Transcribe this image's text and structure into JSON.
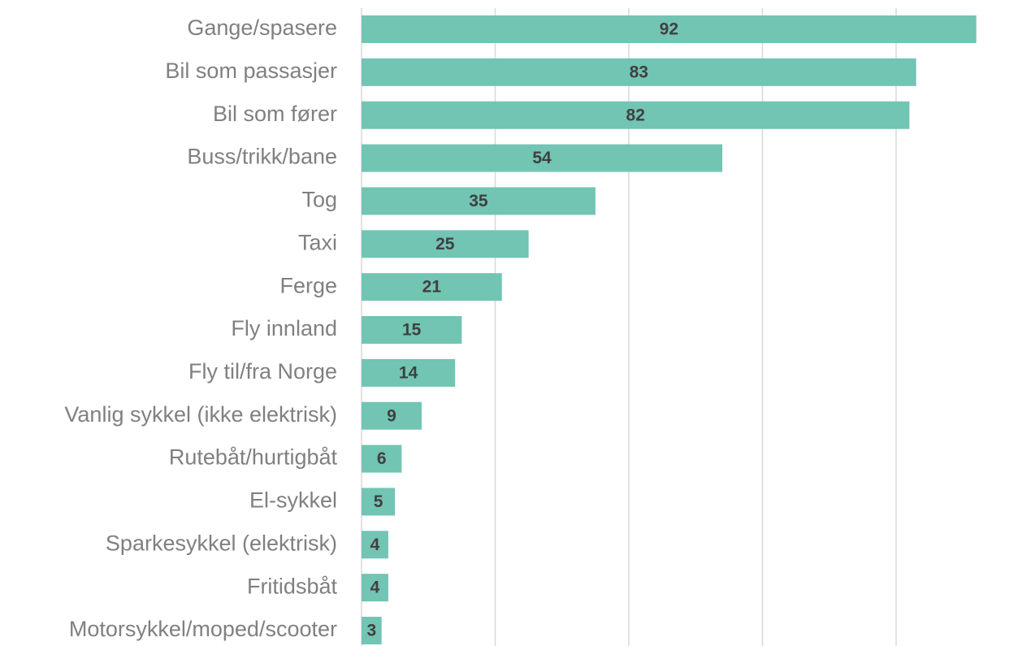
{
  "chart_data": {
    "type": "bar",
    "orientation": "horizontal",
    "categories": [
      "Gange/spasere",
      "Bil som passasjer",
      "Bil som fører",
      "Buss/trikk/bane",
      "Tog",
      "Taxi",
      "Ferge",
      "Fly innland",
      "Fly til/fra Norge",
      "Vanlig sykkel (ikke elektrisk)",
      "Rutebåt/hurtigbåt",
      "El-sykkel",
      "Sparkesykkel (elektrisk)",
      "Fritidsbåt",
      "Motorsykkel/moped/scooter"
    ],
    "values": [
      92,
      83,
      82,
      54,
      35,
      25,
      21,
      15,
      14,
      9,
      6,
      5,
      4,
      4,
      3
    ],
    "color": "#72c4b3",
    "xlim": [
      0,
      98
    ],
    "xticks": [
      0,
      20,
      40,
      60,
      80
    ],
    "grid": true
  }
}
